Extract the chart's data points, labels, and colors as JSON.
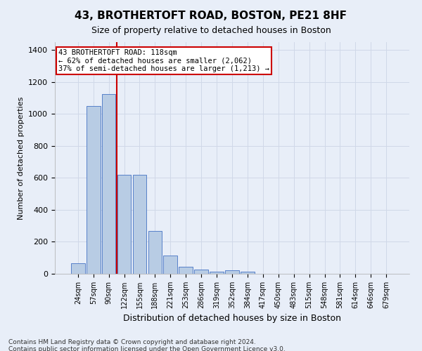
{
  "title": "43, BROTHERTOFT ROAD, BOSTON, PE21 8HF",
  "subtitle": "Size of property relative to detached houses in Boston",
  "xlabel": "Distribution of detached houses by size in Boston",
  "ylabel": "Number of detached properties",
  "categories": [
    "24sqm",
    "57sqm",
    "90sqm",
    "122sqm",
    "155sqm",
    "188sqm",
    "221sqm",
    "253sqm",
    "286sqm",
    "319sqm",
    "352sqm",
    "384sqm",
    "417sqm",
    "450sqm",
    "483sqm",
    "515sqm",
    "548sqm",
    "581sqm",
    "614sqm",
    "646sqm",
    "679sqm"
  ],
  "values": [
    65,
    1050,
    1125,
    620,
    620,
    270,
    115,
    45,
    25,
    15,
    20,
    15,
    0,
    0,
    0,
    0,
    0,
    0,
    0,
    0,
    0
  ],
  "bar_color": "#b8cce4",
  "bar_edge_color": "#4472c4",
  "vline_x": 2.5,
  "annotation_line1": "43 BROTHERTOFT ROAD: 118sqm",
  "annotation_line2": "← 62% of detached houses are smaller (2,062)",
  "annotation_line3": "37% of semi-detached houses are larger (1,213) →",
  "annotation_box_facecolor": "#ffffff",
  "annotation_box_edgecolor": "#cc0000",
  "vline_color": "#cc0000",
  "ylim": [
    0,
    1450
  ],
  "yticks": [
    0,
    200,
    400,
    600,
    800,
    1000,
    1200,
    1400
  ],
  "grid_color": "#d0d8e8",
  "background_color": "#e8eef8",
  "footnote1": "Contains HM Land Registry data © Crown copyright and database right 2024.",
  "footnote2": "Contains public sector information licensed under the Open Government Licence v3.0."
}
